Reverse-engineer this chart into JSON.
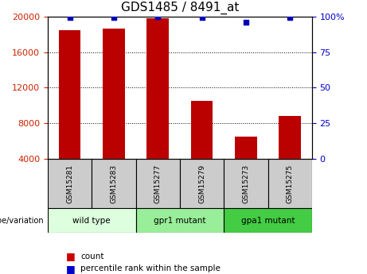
{
  "title": "GDS1485 / 8491_at",
  "samples": [
    "GSM15281",
    "GSM15283",
    "GSM15277",
    "GSM15279",
    "GSM15273",
    "GSM15275"
  ],
  "counts": [
    18500,
    18600,
    19800,
    10500,
    6500,
    8800
  ],
  "percentile_ranks": [
    99,
    99,
    100,
    99,
    96,
    99
  ],
  "groups": [
    {
      "label": "wild type",
      "indices": [
        0,
        1
      ],
      "color": "#ddffdd"
    },
    {
      "label": "gpr1 mutant",
      "indices": [
        2,
        3
      ],
      "color": "#99ee99"
    },
    {
      "label": "gpa1 mutant",
      "indices": [
        4,
        5
      ],
      "color": "#44cc44"
    }
  ],
  "ylim_left": [
    4000,
    20000
  ],
  "ylim_right": [
    0,
    100
  ],
  "yticks_left": [
    4000,
    8000,
    12000,
    16000,
    20000
  ],
  "yticks_right": [
    0,
    25,
    50,
    75,
    100
  ],
  "bar_color": "#bb0000",
  "dot_color": "#0000bb",
  "bar_width": 0.5,
  "grid_color": "black",
  "title_fontsize": 11,
  "tick_fontsize": 8,
  "left_tick_color": "#cc2200",
  "right_tick_color": "#0000cc",
  "sample_bg": "#cccccc",
  "legend_bar_color": "#cc0000",
  "legend_dot_color": "#0000cc"
}
